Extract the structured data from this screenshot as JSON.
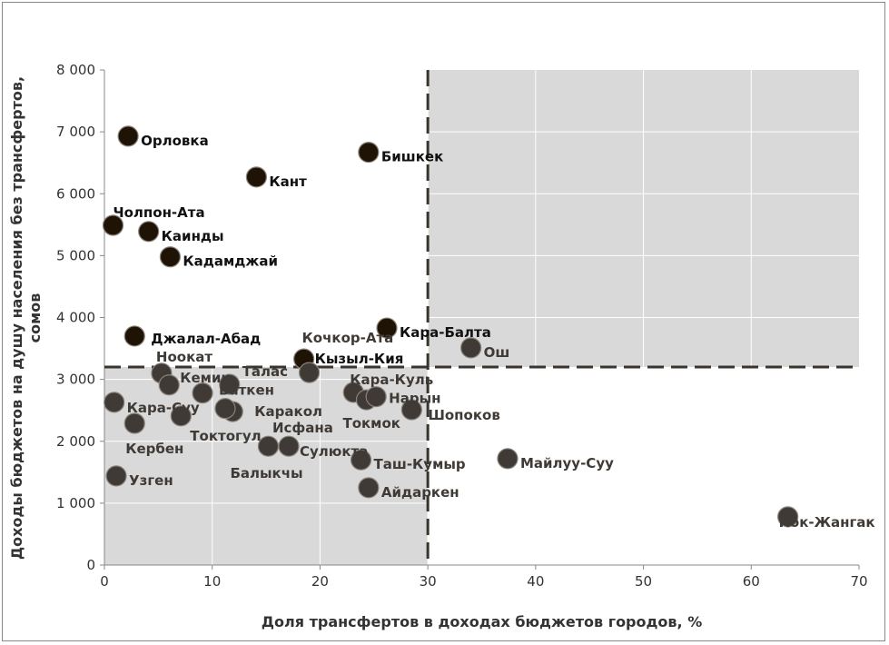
{
  "chart_data": {
    "type": "scatter",
    "xlabel": "Доля трансфертов в доходах бюджетов городов, %",
    "ylabel_lines": [
      "Доходы бюджетов на душу населения без трансфертов,",
      "сомов"
    ],
    "xlim": [
      0,
      70
    ],
    "ylim": [
      0,
      8000
    ],
    "x_ticks": [
      "0",
      "10",
      "20",
      "30",
      "40",
      "50",
      "60",
      "70"
    ],
    "y_ticks": [
      "0",
      "1 000",
      "2 000",
      "3 000",
      "4 000",
      "5 000",
      "6 000",
      "7 000",
      "8 000"
    ],
    "threshold_x": 30,
    "threshold_y": 3200,
    "shaded_regions": [
      {
        "x": [
          0,
          30
        ],
        "y": [
          0,
          3200
        ]
      },
      {
        "x": [
          30,
          70
        ],
        "y": [
          3200,
          8000
        ]
      }
    ],
    "colors": {
      "dark": "#1f1306",
      "grey": "#3f3a35",
      "shade": "#d9d9d9",
      "dash": "#3a342e"
    },
    "points": [
      {
        "name": "Орловка",
        "x": 2.2,
        "y": 6930,
        "group": "dark"
      },
      {
        "name": "Бишкек",
        "x": 24.5,
        "y": 6670,
        "group": "dark"
      },
      {
        "name": "Кант",
        "x": 14.1,
        "y": 6270,
        "group": "dark"
      },
      {
        "name": "Чолпон-Ата",
        "x": 0.8,
        "y": 5490,
        "group": "dark"
      },
      {
        "name": "Каинды",
        "x": 4.1,
        "y": 5390,
        "group": "dark"
      },
      {
        "name": "Кадамджай",
        "x": 6.1,
        "y": 4980,
        "group": "dark"
      },
      {
        "name": "Джалал-Абад",
        "x": 2.8,
        "y": 3700,
        "group": "dark"
      },
      {
        "name": "Кара-Балта",
        "x": 26.2,
        "y": 3830,
        "group": "dark"
      },
      {
        "name": "Кызыл-Кия",
        "x": 18.5,
        "y": 3330,
        "group": "dark"
      },
      {
        "name": "Ош",
        "x": 34.0,
        "y": 3510,
        "group": "grey"
      },
      {
        "name": "Кочкор-Ата",
        "x": 19.0,
        "y": 3110,
        "group": "grey"
      },
      {
        "name": "Ноокат",
        "x": 5.3,
        "y": 3100,
        "group": "grey"
      },
      {
        "name": "Кемин",
        "x": 6.0,
        "y": 2910,
        "group": "grey"
      },
      {
        "name": "Талас",
        "x": 11.6,
        "y": 2920,
        "group": "grey"
      },
      {
        "name": "Баткен",
        "x": 9.1,
        "y": 2780,
        "group": "grey"
      },
      {
        "name": "Кара-Суу",
        "x": 0.9,
        "y": 2630,
        "group": "grey"
      },
      {
        "name": "Кербен",
        "x": 2.8,
        "y": 2290,
        "group": "grey"
      },
      {
        "name": "Токтогул",
        "x": 7.1,
        "y": 2410,
        "group": "grey"
      },
      {
        "name": "Каракол",
        "x": 11.9,
        "y": 2480,
        "group": "grey"
      },
      {
        "name": "Исфана",
        "x": 11.2,
        "y": 2530,
        "group": "grey"
      },
      {
        "name": "Балыкчы",
        "x": 15.2,
        "y": 1920,
        "group": "grey"
      },
      {
        "name": "Сулюкта",
        "x": 17.1,
        "y": 1920,
        "group": "grey"
      },
      {
        "name": "Кара-Куль",
        "x": 23.1,
        "y": 2790,
        "group": "grey"
      },
      {
        "name": "Токмок",
        "x": 24.3,
        "y": 2670,
        "group": "grey"
      },
      {
        "name": "Нарын",
        "x": 25.2,
        "y": 2720,
        "group": "grey"
      },
      {
        "name": "Шопоков",
        "x": 28.5,
        "y": 2510,
        "group": "grey"
      },
      {
        "name": "Таш-Кумыр",
        "x": 23.8,
        "y": 1700,
        "group": "grey"
      },
      {
        "name": "Айдаркен",
        "x": 24.5,
        "y": 1250,
        "group": "grey"
      },
      {
        "name": "Узген",
        "x": 1.1,
        "y": 1440,
        "group": "grey"
      },
      {
        "name": "Майлуу-Суу",
        "x": 37.4,
        "y": 1720,
        "group": "grey"
      },
      {
        "name": "Кок-Жангак",
        "x": 63.4,
        "y": 780,
        "group": "grey"
      }
    ]
  }
}
